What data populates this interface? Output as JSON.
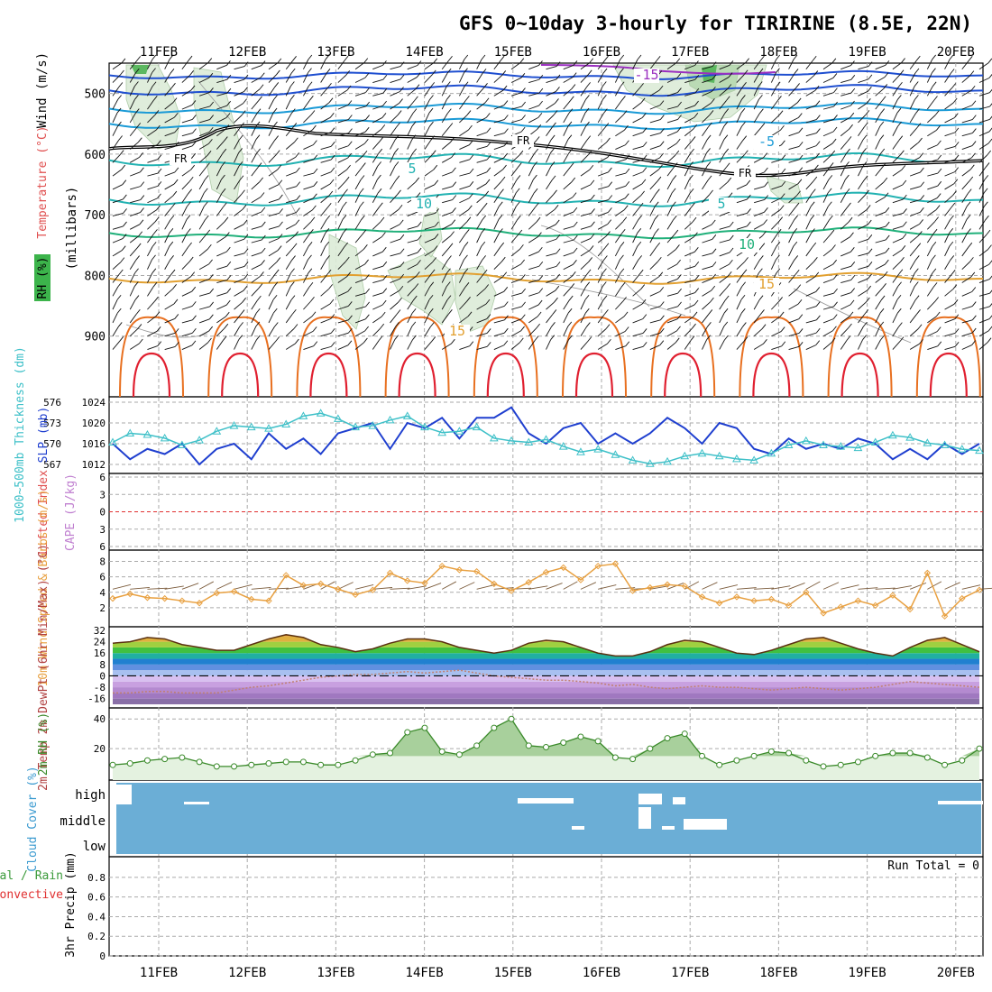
{
  "title": "GFS 0~10day 3-hourly for TIRIRINE (8.5E, 22N)",
  "dates": [
    "11FEB",
    "12FEB",
    "13FEB",
    "14FEB",
    "15FEB",
    "16FEB",
    "17FEB",
    "18FEB",
    "19FEB",
    "20FEB"
  ],
  "colors": {
    "rh_green": "#3cb44b",
    "temp_purple": "#9b30c0",
    "temp_blue": "#1f4fd0",
    "temp_sky": "#1a9ad6",
    "temp_teal": "#22b2b2",
    "temp_sea": "#20b07a",
    "temp_orange": "#e2a030",
    "temp_dark_orange": "#e87020",
    "temp_red": "#e02030",
    "freezing": "#000000",
    "slp_line": "#1f3fcf",
    "thickness_line": "#3ec0c8",
    "wind_speed": "#e8a040",
    "wind_barb": "#7a5a3a",
    "dewpoint": "#c08070",
    "rh2m": "#3a8a2a",
    "cloud_fill": "#6baed6",
    "lifted_index_zero": "#e03030"
  },
  "chart_data": [
    {
      "panel": "upper_air",
      "type": "contour",
      "ylabel_units": "(millibars)",
      "ylabel_parts": [
        "RH (%)",
        "Temperature (°C)",
        "Wind (m/s)"
      ],
      "y_ticks": [
        500,
        600,
        700,
        800,
        900
      ],
      "ylim": [
        1000,
        450
      ],
      "temperature_contour_labels": [
        "-15",
        "-5",
        "5",
        "10",
        "5",
        "10",
        "15",
        "15"
      ],
      "freezing_level_label": "FR"
    },
    {
      "panel": "slp_thickness",
      "type": "line",
      "ylabel_left": "1000~500mb Thickness (dm)",
      "ylabel_right": "SLP (mb)",
      "thickness_ticks": [
        567,
        570,
        573,
        576
      ],
      "slp_ticks": [
        1012,
        1016,
        1020,
        1024
      ],
      "series": [
        {
          "name": "SLP (mb)",
          "values": [
            1016,
            1013,
            1015,
            1014,
            1016,
            1012,
            1015,
            1016,
            1013,
            1018,
            1015,
            1017,
            1014,
            1018,
            1019,
            1020,
            1015,
            1020,
            1019,
            1021,
            1017,
            1021,
            1021,
            1023,
            1018,
            1016,
            1019,
            1020,
            1016,
            1018,
            1016,
            1018,
            1021,
            1019,
            1016,
            1020,
            1019,
            1015,
            1014,
            1017,
            1015,
            1016,
            1015,
            1017,
            1016,
            1013,
            1015,
            1013,
            1016,
            1014,
            1016
          ]
        },
        {
          "name": "1000~500mb Thickness (dm)",
          "values": [
            570.2,
            571.5,
            571.3,
            570.8,
            569.8,
            570.5,
            571.8,
            572.6,
            572.4,
            572.2,
            572.8,
            574.0,
            574.4,
            573.6,
            572.4,
            572.6,
            573.4,
            574.0,
            572.4,
            571.6,
            571.8,
            572.4,
            570.8,
            570.4,
            570.2,
            570.6,
            569.6,
            568.8,
            569.2,
            568.4,
            567.6,
            567.1,
            567.4,
            568.2,
            568.6,
            568.2,
            567.8,
            567.6,
            568.6,
            569.8,
            570.4,
            569.8,
            569.6,
            569.4,
            570.2,
            571.2,
            570.9,
            570.1,
            569.8,
            569.2,
            569.0
          ]
        }
      ]
    },
    {
      "panel": "stability",
      "type": "line",
      "ylabel_left": "Lifted Index",
      "ylabel_right": "CAPE (J/kg)",
      "y_ticks": [
        -6,
        -3,
        0,
        3,
        6
      ]
    },
    {
      "panel": "wind10m",
      "type": "line",
      "ylabel": "10m Wind Speed & Barbs (m/s)",
      "y_ticks": [
        2,
        4,
        6,
        8
      ],
      "ylim": [
        0,
        9
      ],
      "series": [
        {
          "name": "10m Wind Speed",
          "values": [
            3.2,
            3.8,
            3.3,
            3.2,
            2.9,
            2.6,
            3.9,
            4.1,
            3.1,
            2.9,
            6.2,
            4.9,
            5.1,
            4.4,
            3.7,
            4.3,
            6.5,
            5.5,
            5.2,
            7.4,
            6.9,
            6.7,
            5.1,
            4.2,
            5.3,
            6.6,
            7.2,
            5.6,
            7.4,
            7.7,
            4.2,
            4.6,
            5.0,
            4.8,
            3.4,
            2.6,
            3.4,
            2.9,
            3.1,
            2.3,
            4.0,
            1.3,
            2.1,
            2.9,
            2.3,
            3.6,
            1.8,
            6.5,
            0.9,
            3.2,
            4.3
          ]
        }
      ]
    },
    {
      "panel": "temp2m",
      "type": "area",
      "ylabel": "2m Temp 2m DewPt (6hr Min/Max) (°C)",
      "y_ticks": [
        -16,
        -8,
        0,
        8,
        16,
        24,
        32
      ],
      "ylim": [
        -20,
        32
      ],
      "series": [
        {
          "name": "2m Temp",
          "values": [
            23,
            24,
            27,
            26,
            22,
            20,
            18,
            18,
            22,
            26,
            29,
            27,
            22,
            20,
            17,
            19,
            23,
            26,
            26,
            24,
            20,
            18,
            16,
            18,
            23,
            25,
            24,
            20,
            16,
            14,
            14,
            17,
            22,
            25,
            24,
            20,
            16,
            15,
            18,
            22,
            26,
            27,
            23,
            19,
            16,
            14,
            20,
            25,
            27,
            22,
            17
          ]
        },
        {
          "name": "2m DewPt",
          "values": [
            -12,
            -12,
            -11,
            -11,
            -12,
            -12,
            -12,
            -10,
            -8,
            -7,
            -5,
            -3,
            -1,
            0,
            1,
            1,
            2,
            3,
            2,
            3,
            4,
            2,
            0,
            -1,
            -2,
            -3,
            -3,
            -4,
            -5,
            -7,
            -6,
            -8,
            -9,
            -8,
            -7,
            -8,
            -8,
            -9,
            -10,
            -9,
            -8,
            -9,
            -10,
            -9,
            -8,
            -6,
            -4,
            -5,
            -6,
            -7,
            -8
          ]
        }
      ]
    },
    {
      "panel": "rh2m",
      "type": "area",
      "ylabel": "2m RH (%)",
      "y_ticks": [
        20,
        40
      ],
      "ylim": [
        0,
        45
      ],
      "series": [
        {
          "name": "2m RH",
          "values": [
            9,
            10,
            12,
            13,
            14,
            11,
            8,
            8,
            9,
            10,
            11,
            11,
            9,
            9,
            12,
            16,
            17,
            31,
            34,
            18,
            16,
            22,
            34,
            40,
            22,
            21,
            24,
            28,
            25,
            14,
            13,
            20,
            27,
            30,
            15,
            9,
            12,
            15,
            18,
            17,
            12,
            8,
            9,
            11,
            15,
            17,
            17,
            14,
            9,
            12,
            20
          ]
        }
      ]
    },
    {
      "panel": "cloud_cover",
      "type": "heatmap",
      "ylabel": "Cloud Cover (%)",
      "levels": [
        "high",
        "middle",
        "low"
      ]
    },
    {
      "panel": "precip",
      "type": "bar",
      "ylabel_left": "Total / Rain Convective",
      "ylabel": "3hr Precip (mm)",
      "y_ticks": [
        "0",
        "0.2",
        "0.4",
        "0.6",
        "0.8"
      ],
      "ylim": [
        0,
        0.9
      ],
      "annotation": "Run Total = 0",
      "values": []
    }
  ]
}
